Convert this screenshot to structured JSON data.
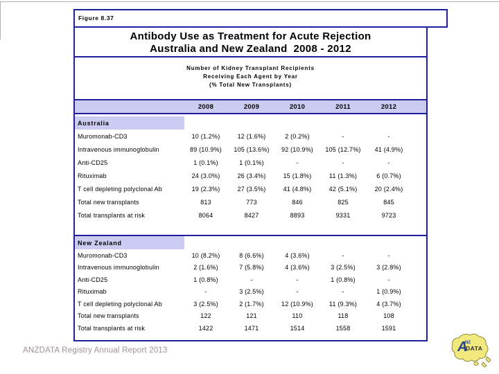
{
  "page": {
    "figure_label": "Figure 8.37",
    "title_line1": "Antibody Use as Treatment for Acute Rejection",
    "title_line2": "Australia and New Zealand  2008 - 2012",
    "footer": "ANZDATA Registry Annual Report 2013"
  },
  "table": {
    "subtitle_lines": [
      "Number of Kidney Transplant Recipients",
      "Receiving Each Agent by Year",
      "(% Total New Transplants)"
    ],
    "year_columns": [
      "2008",
      "2009",
      "2010",
      "2011",
      "2012"
    ],
    "sections": [
      {
        "name": "Australia",
        "rows": [
          {
            "label": "Muromonab-CD3",
            "values": [
              "10 (1.2%)",
              "12 (1.6%)",
              "2 (0.2%)",
              "-",
              "-"
            ]
          },
          {
            "label": "Intravenous immunoglobulin",
            "values": [
              "89 (10.9%)",
              "105 (13.6%)",
              "92 (10.9%)",
              "105 (12.7%)",
              "41 (4.9%)"
            ]
          },
          {
            "label": "Anti-CD25",
            "values": [
              "1 (0.1%)",
              "1 (0.1%)",
              "-",
              "-",
              "-"
            ]
          },
          {
            "label": "Rituximab",
            "values": [
              "24 (3.0%)",
              "26 (3.4%)",
              "15 (1.8%)",
              "11 (1.3%)",
              "6 (0.7%)"
            ]
          },
          {
            "label": "T cell depleting polyclonal Ab",
            "values": [
              "19 (2.3%)",
              "27 (3.5%)",
              "41 (4.8%)",
              "42 (5.1%)",
              "20 (2.4%)"
            ]
          },
          {
            "label": "Total new transplants",
            "values": [
              "813",
              "773",
              "846",
              "825",
              "845"
            ]
          },
          {
            "label": "Total transplants at risk",
            "values": [
              "8064",
              "8427",
              "8893",
              "9331",
              "9723"
            ]
          }
        ]
      },
      {
        "name": "New Zealand",
        "rows": [
          {
            "label": "Muromonab-CD3",
            "values": [
              "10 (8.2%)",
              "8 (6.6%)",
              "4 (3.6%)",
              "-",
              "-"
            ]
          },
          {
            "label": "Intravenous immunoglobulin",
            "values": [
              "2 (1.6%)",
              "7 (5.8%)",
              "4 (3.6%)",
              "3 (2.5%)",
              "3 (2.8%)"
            ]
          },
          {
            "label": "Anti-CD25",
            "values": [
              "1 (0.8%)",
              "-",
              "-",
              "1 (0.8%)",
              "-"
            ]
          },
          {
            "label": "Rituximab",
            "values": [
              "-",
              "3 (2.5%)",
              "-",
              "-",
              "1 (0.9%)"
            ]
          },
          {
            "label": "T cell depleting polyclonal Ab",
            "values": [
              "3 (2.5%)",
              "2 (1.7%)",
              "12 (10.9%)",
              "11 (9.3%)",
              "4 (3.7%)"
            ]
          },
          {
            "label": "Total new transplants",
            "values": [
              "122",
              "121",
              "110",
              "118",
              "108"
            ]
          },
          {
            "label": "Total transplants at risk",
            "values": [
              "1422",
              "1471",
              "1514",
              "1558",
              "1591"
            ]
          }
        ]
      }
    ]
  },
  "logo": {
    "letter_a": "A",
    "nz": "NZ",
    "word": "DATA"
  },
  "colors": {
    "border_navy": "#1e1e9e",
    "header_lavender": "#ccccf2",
    "footer_text": "#a09195",
    "logo_land": "#f2e97e",
    "logo_blue": "#24418e"
  }
}
